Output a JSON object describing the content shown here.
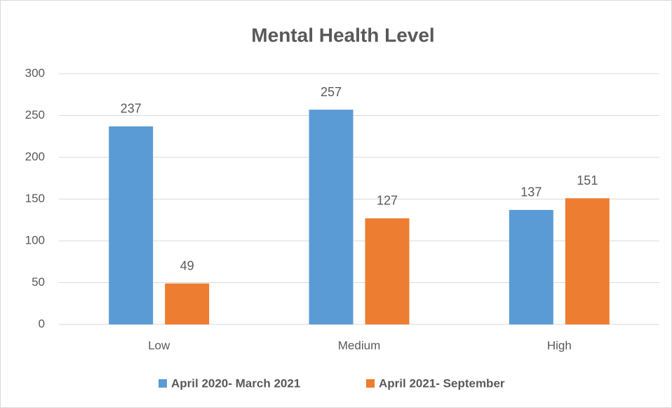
{
  "chart_data": {
    "type": "bar",
    "title": "Mental Health Level",
    "categories": [
      "Low",
      "Medium",
      "High"
    ],
    "series": [
      {
        "name": "April 2020- March 2021",
        "color": "#5b9bd5",
        "values": [
          237,
          257,
          137
        ]
      },
      {
        "name": "April 2021- September",
        "color": "#ed7d31",
        "values": [
          49,
          127,
          151
        ]
      }
    ],
    "ylim": [
      0,
      300
    ],
    "yticks": [
      0,
      50,
      100,
      150,
      200,
      250,
      300
    ],
    "grid": true,
    "legend": "bottom"
  }
}
